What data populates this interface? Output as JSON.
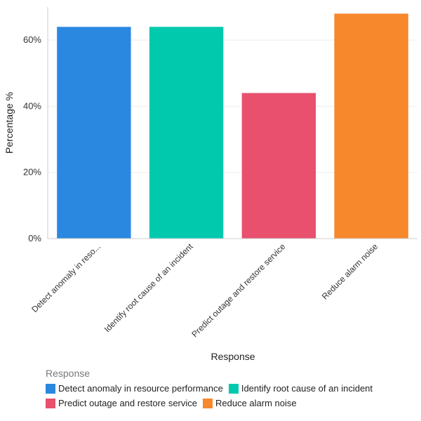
{
  "chart_data": {
    "type": "bar",
    "title": "",
    "xlabel": "Response",
    "ylabel": "Percentage %",
    "ylim": [
      0,
      70
    ],
    "yticks": [
      0,
      20,
      40,
      60
    ],
    "ytick_labels": [
      "0%",
      "20%",
      "40%",
      "60%"
    ],
    "categories": [
      "Detect anomaly in reso...",
      "Identify root cause of an incident",
      "Predict outage and restore service",
      "Reduce alarm noise"
    ],
    "values": [
      64,
      64,
      44,
      68
    ],
    "colors": [
      "#2b88e0",
      "#00c9ae",
      "#e8506e",
      "#f7882c"
    ]
  },
  "legend": {
    "title": "Response",
    "items": [
      {
        "label": "Detect anomaly in resource performance",
        "color": "#2b88e0"
      },
      {
        "label": "Identify root cause of an incident",
        "color": "#00c9ae"
      },
      {
        "label": "Predict outage and restore service",
        "color": "#e8506e"
      },
      {
        "label": "Reduce alarm noise",
        "color": "#f7882c"
      }
    ]
  }
}
